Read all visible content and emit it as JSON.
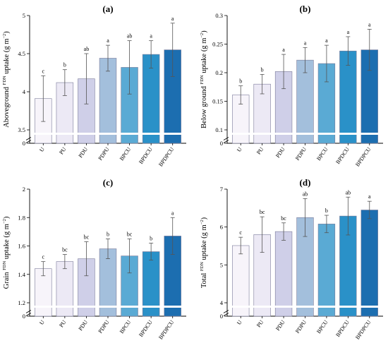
{
  "bar_colors": [
    "#f7f4fa",
    "#ece9f5",
    "#cfcfe8",
    "#a3bfdc",
    "#5aaad4",
    "#2a91c8",
    "#1c6eb0"
  ],
  "chart_data": [
    {
      "type": "bar",
      "title": "(a)",
      "ylabel": "Aboveground ^FDN uptake  (g m^-2)",
      "ylabel_parts": [
        "Aboveground ",
        "FDN",
        " uptake  (g m",
        "−2",
        ")"
      ],
      "categories": [
        "U",
        "PU",
        "PDU",
        "PDPU",
        "BPCU",
        "BPDCU",
        "BPDPCU"
      ],
      "values": [
        3.91,
        4.12,
        4.17,
        4.44,
        4.32,
        4.49,
        4.55
      ],
      "errors": [
        0.3,
        0.17,
        0.33,
        0.17,
        0.35,
        0.18,
        0.35
      ],
      "letters": [
        "c",
        "b",
        "ab",
        "a",
        "ab",
        "a",
        "a"
      ],
      "yticks": [
        "3.5",
        "4",
        "4.5",
        "5"
      ],
      "ylim": [
        3.5,
        5
      ],
      "axis_break": true,
      "axis_zero_tick": "0",
      "grid": false,
      "legend": "none"
    },
    {
      "type": "bar",
      "title": "(b)",
      "ylabel_parts": [
        "Below ground ",
        "FDN",
        " uptake  (g m",
        "−2",
        ")"
      ],
      "categories": [
        "U",
        "PU",
        "PDU",
        "PDPU",
        "BPCU",
        "BPDCU",
        "BPDPCU"
      ],
      "values": [
        0.161,
        0.18,
        0.202,
        0.222,
        0.216,
        0.238,
        0.24
      ],
      "errors": [
        0.016,
        0.017,
        0.03,
        0.022,
        0.032,
        0.025,
        0.036
      ],
      "letters": [
        "b",
        "b",
        "a",
        "a",
        "a",
        "a",
        "a"
      ],
      "yticks": [
        "0.1",
        "0.15",
        "0.2",
        "0.25",
        "0.3"
      ],
      "ylim": [
        0.1,
        0.3
      ],
      "axis_break": true,
      "axis_zero_tick": "0",
      "grid": false,
      "legend": "none"
    },
    {
      "type": "bar",
      "title": "(c)",
      "ylabel_parts": [
        "Grain ",
        "FDN",
        " uptake  (g m",
        "−2",
        ")"
      ],
      "categories": [
        "U",
        "PU",
        "PDU",
        "PDPU",
        "BPCU",
        "BPDCU",
        "BPDPCU"
      ],
      "values": [
        1.44,
        1.49,
        1.51,
        1.58,
        1.53,
        1.56,
        1.67
      ],
      "errors": [
        0.05,
        0.05,
        0.12,
        0.07,
        0.12,
        0.06,
        0.13
      ],
      "letters": [
        "c",
        "bc",
        "bc",
        "b",
        "bc",
        "b",
        "a"
      ],
      "yticks": [
        "1.2",
        "1.4",
        "1.6",
        "1.8",
        "2"
      ],
      "ylim": [
        1.2,
        2
      ],
      "axis_break": true,
      "axis_zero_tick": "0",
      "grid": false,
      "legend": "none"
    },
    {
      "type": "bar",
      "title": "(d)",
      "ylabel_parts": [
        "Total ",
        "FDN",
        " uptake  (g m",
        "−2",
        ")"
      ],
      "categories": [
        "U",
        "PU",
        "PDU",
        "PDPU",
        "BPCU",
        "BPDCU",
        "BPDPCU"
      ],
      "values": [
        5.51,
        5.8,
        5.88,
        6.25,
        6.08,
        6.29,
        6.45
      ],
      "errors": [
        0.22,
        0.47,
        0.23,
        0.5,
        0.23,
        0.5,
        0.23
      ],
      "letters": [
        "c",
        "bc",
        "bc",
        "ab",
        "b",
        "ab",
        "a"
      ],
      "yticks": [
        "4",
        "5",
        "6",
        "7"
      ],
      "ylim": [
        4,
        7
      ],
      "axis_break": true,
      "axis_zero_tick": "0",
      "grid": false,
      "legend": "none"
    }
  ]
}
